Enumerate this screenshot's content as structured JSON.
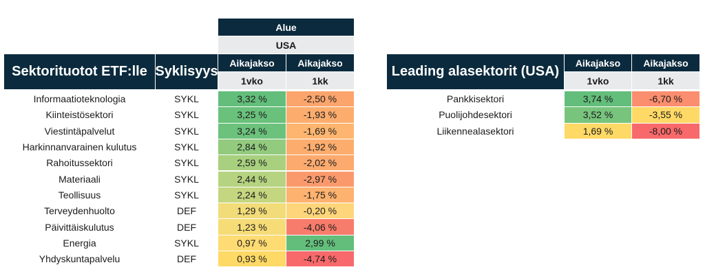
{
  "colors": {
    "header_navy": "#0b2a3d",
    "subheader_grey": "#e8eaec",
    "green_strong": "#63be7b",
    "green_mid": "#a9d27f",
    "yellow": "#ffd966",
    "orange": "#fba56d",
    "red": "#f8696b"
  },
  "left_table": {
    "region_header": "Alue",
    "region_value": "USA",
    "title": "Sektorituotot ETF:lle",
    "cycle_header": "Syklisyys",
    "period_header_1": "Aikajakso",
    "period_header_2": "Aikajakso",
    "period_sub_1": "1vko",
    "period_sub_2": "1kk",
    "rows": [
      {
        "name": "Informaatioteknologia",
        "cycle": "SYKL",
        "w1": "3,32 %",
        "m1": "-2,50 %",
        "w1_color": "#63be7b",
        "m1_color": "#fba56d"
      },
      {
        "name": "Kiinteistösektori",
        "cycle": "SYKL",
        "w1": "3,25 %",
        "m1": "-1,93 %",
        "w1_color": "#6ac17c",
        "m1_color": "#fcad6e"
      },
      {
        "name": "Viestintäpalvelut",
        "cycle": "SYKL",
        "w1": "3,24 %",
        "m1": "-1,69 %",
        "w1_color": "#6cc27c",
        "m1_color": "#fdb56f"
      },
      {
        "name": "Harkinnanvarainen kulutus",
        "cycle": "SYKL",
        "w1": "2,84 %",
        "m1": "-1,92 %",
        "w1_color": "#92cb7e",
        "m1_color": "#fcad6e"
      },
      {
        "name": "Rahoitussektori",
        "cycle": "SYKL",
        "w1": "2,59 %",
        "m1": "-2,02 %",
        "w1_color": "#a8d07f",
        "m1_color": "#fcaa6e"
      },
      {
        "name": "Materiaali",
        "cycle": "SYKL",
        "w1": "2,44 %",
        "m1": "-2,97 %",
        "w1_color": "#b5d380",
        "m1_color": "#fa9a6c"
      },
      {
        "name": "Teollisuus",
        "cycle": "SYKL",
        "w1": "2,24 %",
        "m1": "-1,75 %",
        "w1_color": "#c4d680",
        "m1_color": "#fdb26f"
      },
      {
        "name": "Terveydenhuolto",
        "cycle": "DEF",
        "w1": "1,29 %",
        "m1": "-0,20 %",
        "w1_color": "#f1dc79",
        "m1_color": "#fed57a"
      },
      {
        "name": "Päivittäiskulutus",
        "cycle": "DEF",
        "w1": "1,23 %",
        "m1": "-4,06 %",
        "w1_color": "#f6dc77",
        "m1_color": "#f87c6b"
      },
      {
        "name": "Energia",
        "cycle": "SYKL",
        "w1": "0,97 %",
        "m1": "2,99 %",
        "w1_color": "#fedb73",
        "m1_color": "#63be7b"
      },
      {
        "name": "Yhdyskuntapalvelu",
        "cycle": "DEF",
        "w1": "0,93 %",
        "m1": "-4,74 %",
        "w1_color": "#ffd966",
        "m1_color": "#f8696b"
      }
    ]
  },
  "right_table": {
    "title": "Leading alasektorit (USA)",
    "period_header_1": "Aikajakso",
    "period_header_2": "Aikajakso",
    "period_sub_1": "1vko",
    "period_sub_2": "1kk",
    "rows": [
      {
        "name": "Pankkisektori",
        "w1": "3,74 %",
        "m1": "-6,70 %",
        "w1_color": "#63be7b",
        "m1_color": "#fa8e6f"
      },
      {
        "name": "Puolijohdesektori",
        "w1": "3,52 %",
        "m1": "-3,55 %",
        "w1_color": "#78c47d",
        "m1_color": "#ffd966"
      },
      {
        "name": "Liikennealasektori",
        "w1": "1,69 %",
        "m1": "-8,00 %",
        "w1_color": "#ffd966",
        "m1_color": "#f8696b"
      }
    ]
  }
}
